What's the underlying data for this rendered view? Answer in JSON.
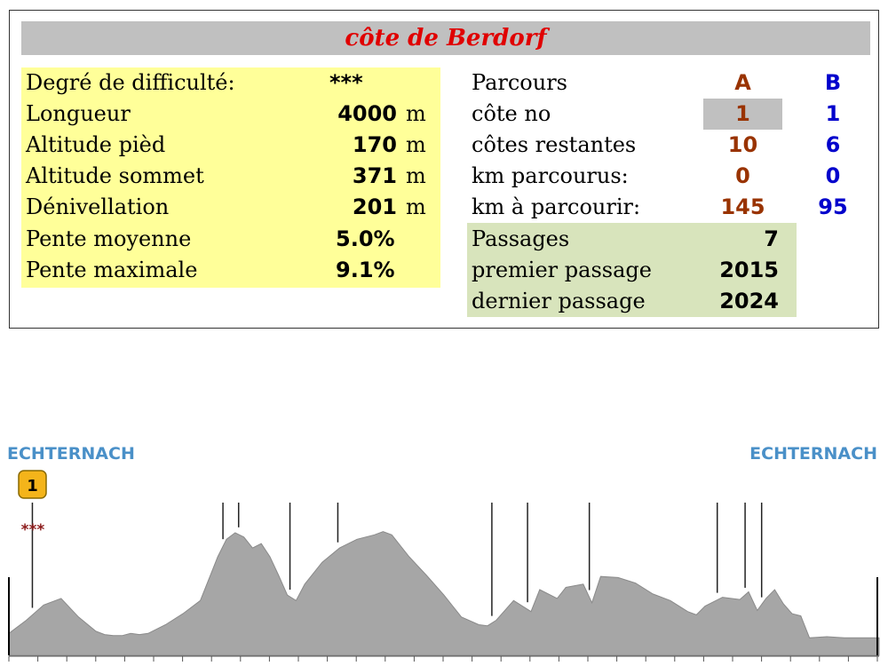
{
  "title": "côte de Berdorf",
  "left_table": {
    "rows": [
      {
        "label": "Degré de difficulté:",
        "value": "***",
        "unit": ""
      },
      {
        "label": "Longueur",
        "value": "4000",
        "unit": "m"
      },
      {
        "label": "Altitude pièd",
        "value": "170",
        "unit": "m"
      },
      {
        "label": "Altitude sommet",
        "value": "371",
        "unit": "m"
      },
      {
        "label": "Dénivellation",
        "value": "201",
        "unit": "m"
      },
      {
        "label": "Pente moyenne",
        "value": "5.0%",
        "unit": ""
      },
      {
        "label": "Pente maximale",
        "value": "9.1%",
        "unit": ""
      }
    ]
  },
  "right_table": {
    "header": {
      "label": "Parcours",
      "a": "A",
      "b": "B"
    },
    "rows": [
      {
        "label": "côte no",
        "a": "1",
        "b": "1"
      },
      {
        "label": "côtes restantes",
        "a": "10",
        "b": "6"
      },
      {
        "label": "km parcourus:",
        "a": "0",
        "b": "0"
      },
      {
        "label": "km à parcourir:",
        "a": "145",
        "b": "95"
      }
    ],
    "passages": [
      {
        "label": "Passages",
        "value": "7"
      },
      {
        "label": "premier passage",
        "value": "2015"
      },
      {
        "label": "dernier passage",
        "value": "2024"
      }
    ]
  },
  "colors": {
    "title": "#e00000",
    "a": "#993300",
    "b": "#0000cc",
    "profile_fill": "#a6a6a6",
    "town": "#4a90c8"
  },
  "chart_data": {
    "type": "area",
    "start_label": "ECHTERNACH",
    "end_label": "ECHTERNACH",
    "climb_badge": "1",
    "climb_stars": "***",
    "profile": [
      [
        0,
        80
      ],
      [
        2,
        92
      ],
      [
        4,
        106
      ],
      [
        6,
        112
      ],
      [
        8,
        95
      ],
      [
        10,
        82
      ],
      [
        11,
        79
      ],
      [
        12,
        78
      ],
      [
        12.5,
        78
      ],
      [
        13,
        78
      ],
      [
        14,
        80
      ],
      [
        15,
        79
      ],
      [
        16,
        80
      ],
      [
        18,
        88
      ],
      [
        20,
        98
      ],
      [
        22,
        110
      ],
      [
        24,
        150
      ],
      [
        25,
        166
      ],
      [
        26,
        172
      ],
      [
        27,
        168
      ],
      [
        28,
        158
      ],
      [
        29,
        162
      ],
      [
        30,
        150
      ],
      [
        31,
        133
      ],
      [
        32,
        115
      ],
      [
        33,
        110
      ],
      [
        34,
        125
      ],
      [
        36,
        145
      ],
      [
        38,
        158
      ],
      [
        40,
        166
      ],
      [
        42,
        170
      ],
      [
        43,
        173
      ],
      [
        44,
        170
      ],
      [
        45,
        160
      ],
      [
        46,
        150
      ],
      [
        48,
        133
      ],
      [
        50,
        115
      ],
      [
        52,
        95
      ],
      [
        54,
        88
      ],
      [
        55,
        87
      ],
      [
        56,
        92
      ],
      [
        58,
        110
      ],
      [
        60,
        100
      ],
      [
        61,
        120
      ],
      [
        63,
        112
      ],
      [
        64,
        122
      ],
      [
        66,
        125
      ],
      [
        67,
        108
      ],
      [
        68,
        132
      ],
      [
        70,
        131
      ],
      [
        72,
        126
      ],
      [
        74,
        116
      ],
      [
        76,
        110
      ],
      [
        78,
        100
      ],
      [
        79,
        97
      ],
      [
        80,
        105
      ],
      [
        82,
        113
      ],
      [
        84,
        111
      ],
      [
        85,
        118
      ],
      [
        86,
        101
      ],
      [
        87,
        112
      ],
      [
        88,
        120
      ],
      [
        89,
        107
      ],
      [
        90,
        98
      ],
      [
        91,
        96
      ],
      [
        92,
        76
      ],
      [
        94,
        77
      ],
      [
        96,
        76
      ],
      [
        98,
        76
      ],
      [
        99,
        76
      ],
      [
        100,
        76
      ]
    ],
    "markers": [
      2.7,
      24.6,
      26.4,
      32.3,
      37.8,
      55.5,
      59.6,
      66.7,
      81.4,
      84.6,
      86.5
    ],
    "ylim": [
      60,
      180
    ],
    "xlim": [
      0,
      100
    ]
  }
}
